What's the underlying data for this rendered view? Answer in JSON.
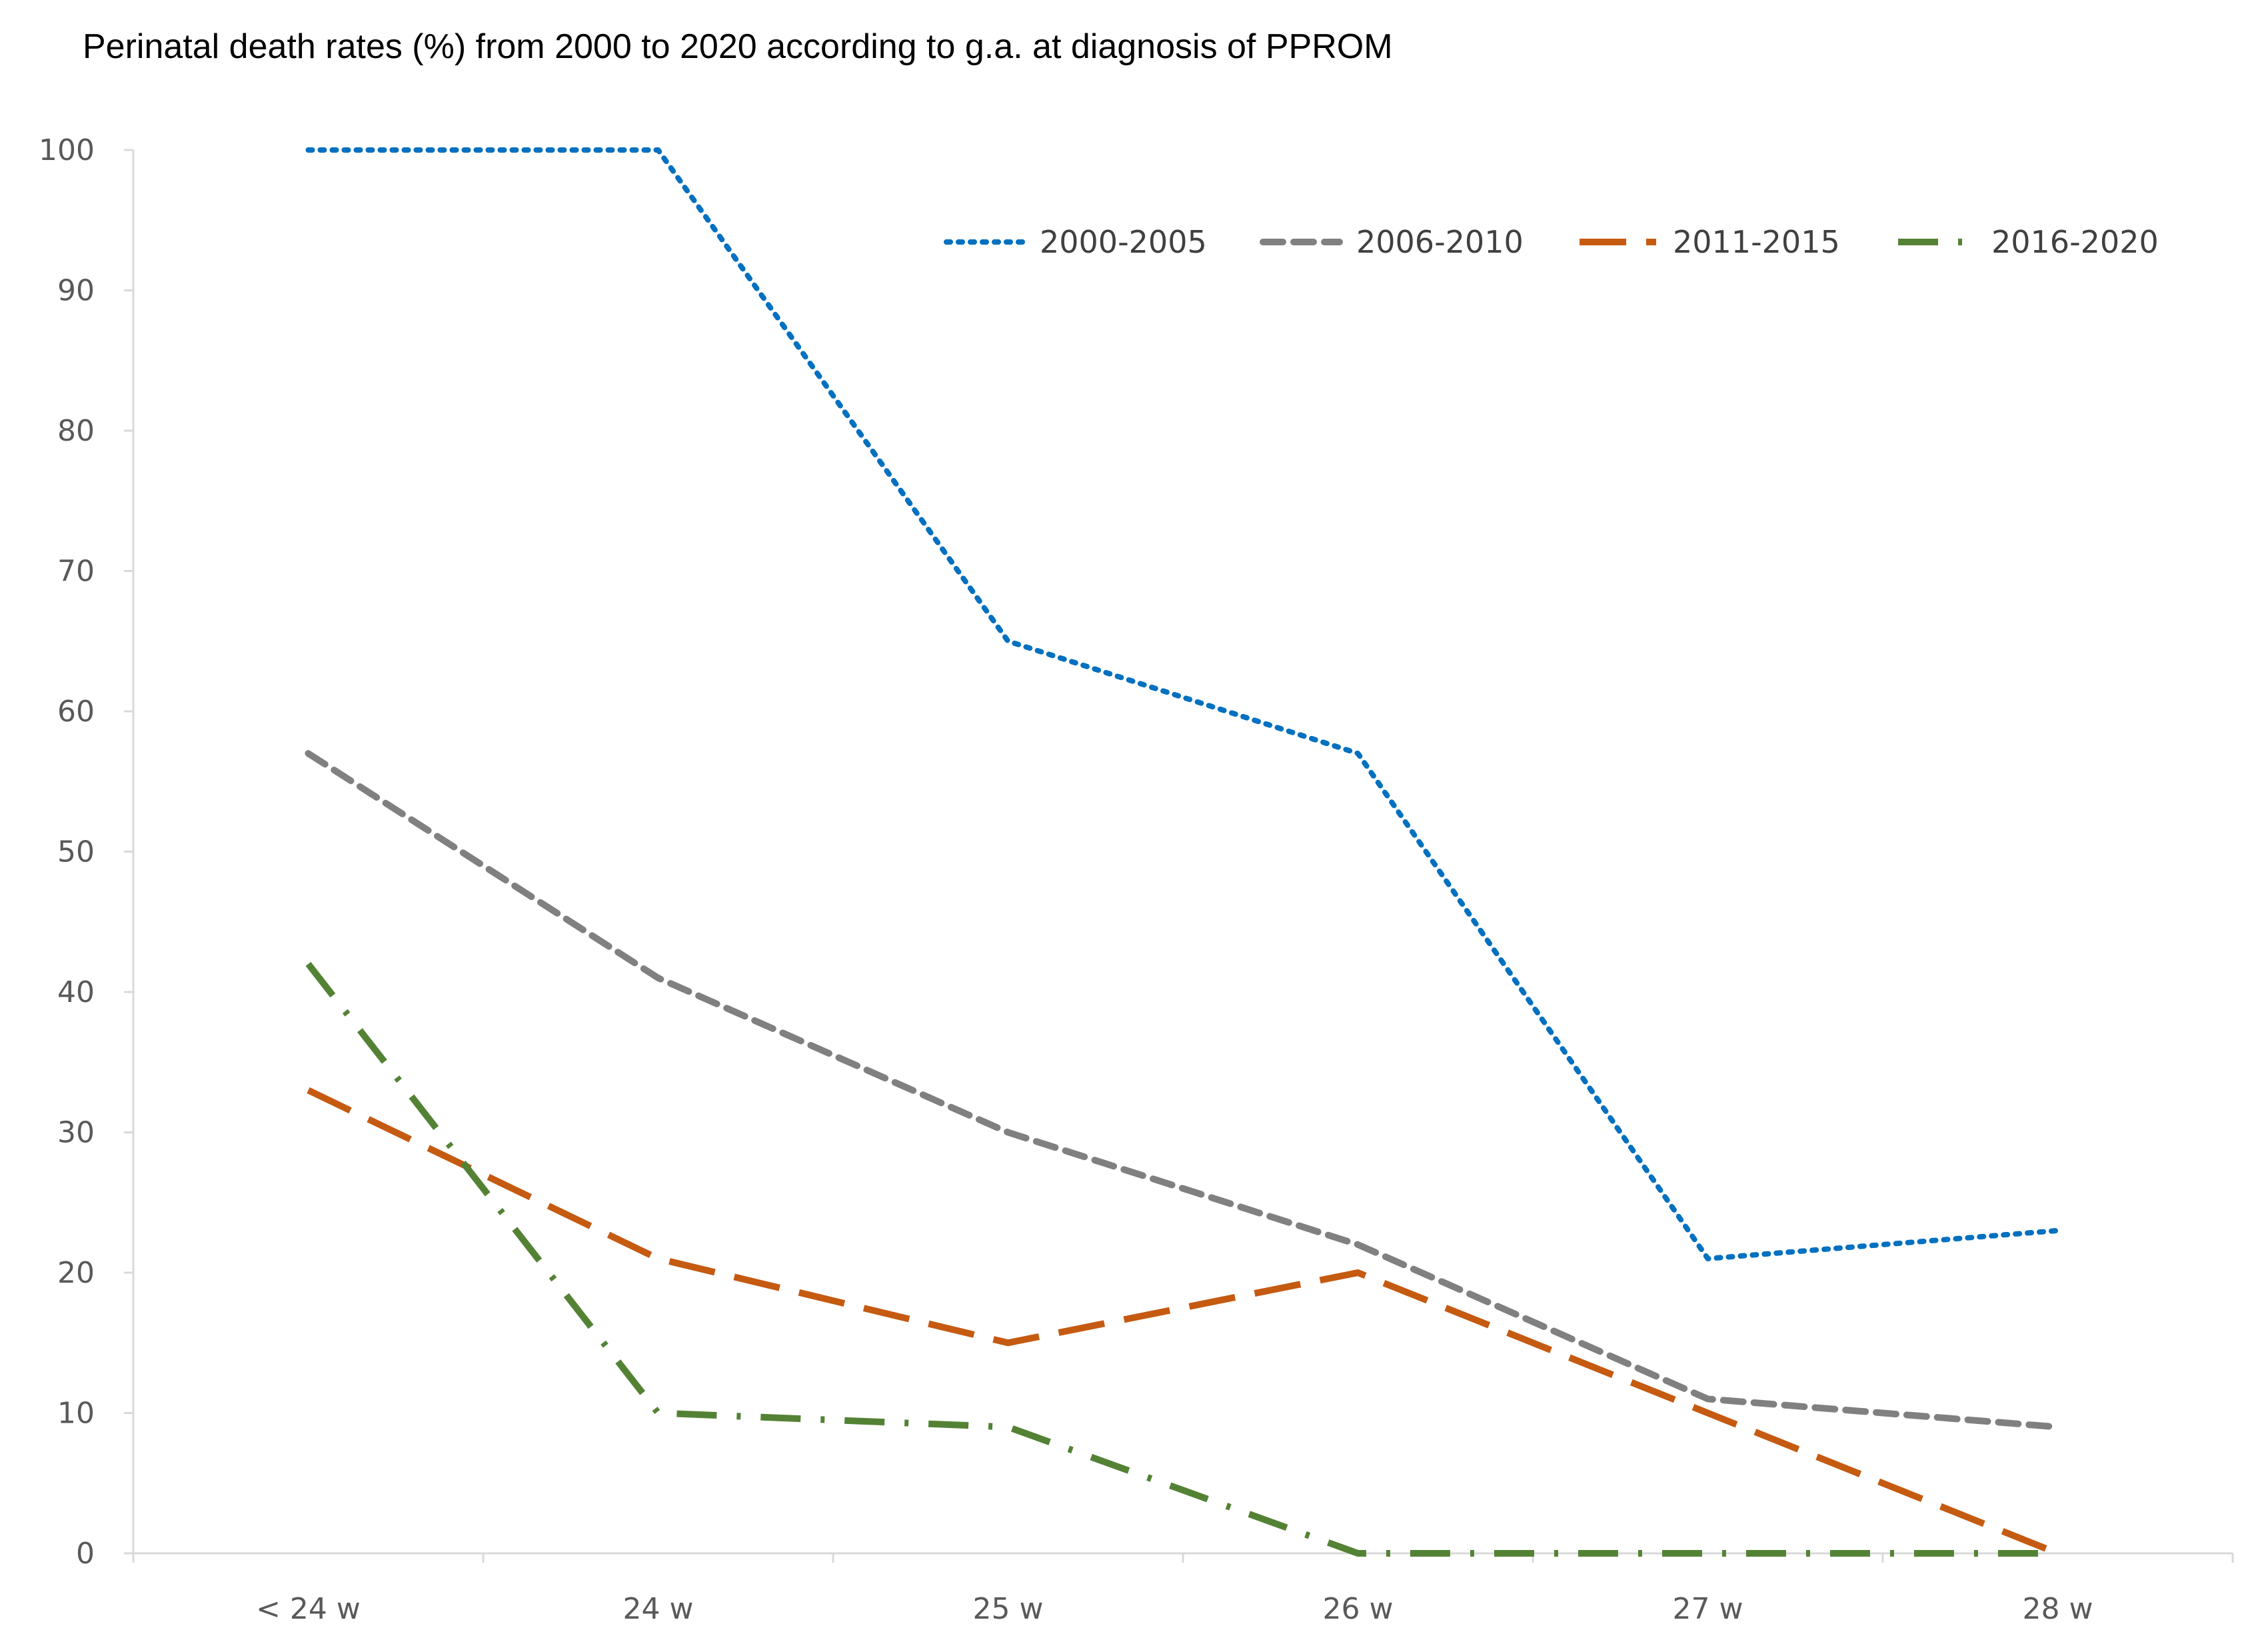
{
  "chart_data": {
    "type": "line",
    "title": "Perinatal death rates (%) from 2000 to 2020 according to g.a. at diagnosis of PPROM",
    "xlabel": "",
    "ylabel": "",
    "categories": [
      "< 24 w",
      "24 w",
      "25 w",
      "26 w",
      "27 w",
      "28 w"
    ],
    "ylim": [
      0,
      100
    ],
    "yticks": [
      0,
      10,
      20,
      30,
      40,
      50,
      60,
      70,
      80,
      90,
      100
    ],
    "grid": false,
    "legend_position": "top-right",
    "series": [
      {
        "name": "2000-2005",
        "values": [
          100,
          100,
          65,
          57,
          21,
          23
        ],
        "color": "#0070C0",
        "style": "dotted"
      },
      {
        "name": "2006-2010",
        "values": [
          57,
          41,
          30,
          22,
          11,
          9
        ],
        "color": "#808080",
        "style": "dashed"
      },
      {
        "name": "2011-2015",
        "values": [
          33,
          21,
          15,
          20,
          10,
          0
        ],
        "color": "#C55A11",
        "style": "long-dash"
      },
      {
        "name": "2016-2020",
        "values": [
          42,
          10,
          9,
          0,
          0,
          0
        ],
        "color": "#548235",
        "style": "dash-dot"
      }
    ]
  }
}
